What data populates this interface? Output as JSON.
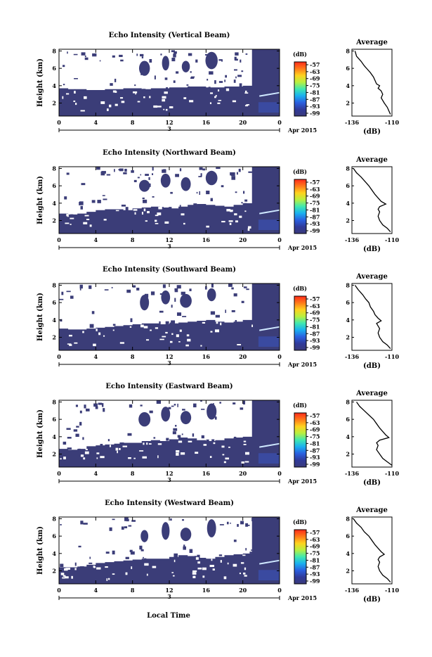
{
  "colorbar_unit": "(dB)",
  "colorbar_ticks": [
    "-57",
    "-63",
    "-69",
    "-75",
    "-81",
    "-87",
    "-93",
    "-99"
  ],
  "colorbar_colors": [
    "#ff2a1a",
    "#ff7a1a",
    "#ffd21e",
    "#b8f040",
    "#40e8b0",
    "#1ab0f0",
    "#2a60e0",
    "#303a9a",
    "#3a3a7a"
  ],
  "fill_color": "#3b3d78",
  "hot_color": "#cfe8ff",
  "x_ticks": [
    "0",
    "4",
    "8",
    "12",
    "16",
    "20",
    "0"
  ],
  "x_minor_label": "3",
  "date_label": "Apr 2015",
  "xlabel": "Local Time",
  "ylabel": "Height (km)",
  "y_ticks": [
    "2",
    "4",
    "6",
    "8"
  ],
  "profile_title": "Average",
  "profile_x_ticks": [
    "-136",
    "-110"
  ],
  "profile_unit": "(dB)",
  "profile_y_ticks": [
    "2",
    "4",
    "6",
    "8"
  ],
  "chart_data": [
    {
      "type": "heatmap",
      "title": "Echo Intensity (Vertical Beam)",
      "xlim": [
        0,
        24
      ],
      "ylim": [
        0.5,
        8.2
      ],
      "layer_top": [
        3.7,
        3.6,
        3.6,
        3.5,
        3.5,
        3.6,
        3.6,
        3.7,
        3.7,
        3.6,
        3.7,
        3.7,
        3.8,
        3.8,
        3.9,
        3.9,
        3.8,
        3.8,
        3.9,
        3.9,
        4.0,
        8.2,
        8.2,
        8.2
      ],
      "profile": {
        "x": [
          -134,
          -133,
          -130,
          -128,
          -126,
          -124,
          -122,
          -121,
          -120,
          -118,
          -119,
          -117,
          -116,
          -117,
          -115,
          -113,
          -112,
          -111
        ],
        "y": [
          8.0,
          7.4,
          6.8,
          6.3,
          5.9,
          5.5,
          5.0,
          4.6,
          4.2,
          4.0,
          3.7,
          3.4,
          3.0,
          2.6,
          2.0,
          1.5,
          1.1,
          0.7
        ]
      }
    },
    {
      "type": "heatmap",
      "title": "Echo Intensity (Northward Beam)",
      "xlim": [
        0,
        24
      ],
      "ylim": [
        0.5,
        8.2
      ],
      "layer_top": [
        2.8,
        2.7,
        2.8,
        3.0,
        3.2,
        3.3,
        3.3,
        3.2,
        3.4,
        3.5,
        3.6,
        3.5,
        3.4,
        3.6,
        3.8,
        3.9,
        3.8,
        3.7,
        3.6,
        3.8,
        4.0,
        8.2,
        8.2,
        8.2
      ],
      "profile": {
        "x": [
          -135,
          -133,
          -130,
          -127,
          -125,
          -123,
          -121,
          -119,
          -117,
          -114,
          -118,
          -119,
          -118,
          -119,
          -118,
          -116,
          -113,
          -111
        ],
        "y": [
          8.0,
          7.5,
          7.0,
          6.4,
          6.0,
          5.5,
          5.0,
          4.6,
          4.2,
          3.9,
          3.6,
          3.3,
          3.0,
          2.5,
          2.0,
          1.5,
          1.1,
          0.7
        ]
      }
    },
    {
      "type": "heatmap",
      "title": "Echo Intensity (Southward Beam)",
      "xlim": [
        0,
        24
      ],
      "ylim": [
        0.5,
        8.2
      ],
      "layer_top": [
        3.0,
        2.9,
        2.9,
        3.0,
        3.1,
        3.2,
        3.3,
        3.4,
        3.5,
        3.6,
        3.6,
        3.5,
        3.6,
        3.7,
        3.8,
        3.9,
        4.0,
        3.8,
        3.7,
        3.8,
        4.0,
        8.2,
        8.2,
        8.2
      ],
      "profile": {
        "x": [
          -134,
          -132,
          -129,
          -127,
          -125,
          -124,
          -122,
          -121,
          -119,
          -117,
          -120,
          -119,
          -118,
          -119,
          -118,
          -116,
          -113,
          -111
        ],
        "y": [
          8.0,
          7.5,
          6.9,
          6.4,
          6.0,
          5.5,
          5.0,
          4.6,
          4.2,
          3.9,
          3.6,
          3.3,
          3.0,
          2.5,
          2.0,
          1.5,
          1.1,
          0.7
        ]
      }
    },
    {
      "type": "heatmap",
      "title": "Echo Intensity (Eastward Beam)",
      "xlim": [
        0,
        24
      ],
      "ylim": [
        0.5,
        8.2
      ],
      "layer_top": [
        2.6,
        2.5,
        2.6,
        2.9,
        3.0,
        3.1,
        3.2,
        3.3,
        3.3,
        3.5,
        3.6,
        3.5,
        3.7,
        3.9,
        3.8,
        3.6,
        3.5,
        3.6,
        3.8,
        3.9,
        4.0,
        8.2,
        8.2,
        8.2
      ],
      "profile": {
        "x": [
          -133,
          -131,
          -128,
          -125,
          -122,
          -120,
          -118,
          -116,
          -114,
          -112,
          -118,
          -120,
          -119,
          -120,
          -118,
          -116,
          -113,
          -110
        ],
        "y": [
          8.0,
          7.5,
          7.0,
          6.5,
          6.0,
          5.5,
          5.0,
          4.6,
          4.2,
          3.9,
          3.6,
          3.3,
          3.0,
          2.5,
          2.0,
          1.5,
          1.1,
          0.7
        ]
      }
    },
    {
      "type": "heatmap",
      "title": "Echo Intensity (Westward Beam)",
      "xlim": [
        0,
        24
      ],
      "ylim": [
        0.5,
        8.2
      ],
      "layer_top": [
        2.4,
        2.4,
        2.5,
        2.7,
        2.9,
        3.0,
        3.1,
        3.2,
        3.3,
        3.4,
        3.4,
        3.4,
        3.6,
        3.8,
        3.7,
        3.5,
        3.4,
        3.6,
        3.8,
        3.9,
        4.0,
        8.2,
        8.2,
        8.2
      ],
      "profile": {
        "x": [
          -135,
          -133,
          -130,
          -128,
          -125,
          -123,
          -121,
          -119,
          -117,
          -115,
          -118,
          -119,
          -118,
          -119,
          -118,
          -116,
          -113,
          -111
        ],
        "y": [
          8.0,
          7.5,
          7.0,
          6.5,
          6.0,
          5.5,
          5.0,
          4.6,
          4.2,
          3.9,
          3.6,
          3.3,
          3.0,
          2.5,
          2.0,
          1.5,
          1.1,
          0.7
        ]
      }
    }
  ]
}
